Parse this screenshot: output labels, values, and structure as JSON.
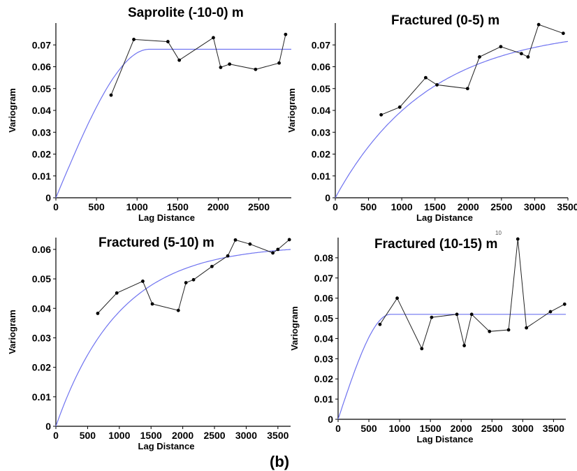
{
  "chart_data": [
    {
      "type": "line",
      "title": "Saprolite (-10-0) m",
      "xlabel": "Lag Distance",
      "ylabel": "Variogram",
      "xlim": [
        0,
        2900
      ],
      "ylim": [
        0,
        0.08
      ],
      "xticks": [
        0,
        500,
        1000,
        1500,
        2000,
        2500
      ],
      "yticks": [
        0,
        0.01,
        0.02,
        0.03,
        0.04,
        0.05,
        0.06,
        0.07
      ],
      "ytick_labels": [
        "0",
        "0.01",
        "0.02",
        "0.03",
        "0.04",
        "0.05",
        "0.06",
        "0.07"
      ],
      "model": {
        "type": "spherical",
        "sill": 0.068,
        "range": 1150
      },
      "series": [
        {
          "values": [
            {
              "x": 680,
              "y": 0.047
            },
            {
              "x": 960,
              "y": 0.0725
            },
            {
              "x": 1380,
              "y": 0.0715
            },
            {
              "x": 1520,
              "y": 0.063
            },
            {
              "x": 1940,
              "y": 0.0733
            },
            {
              "x": 2030,
              "y": 0.0597
            },
            {
              "x": 2140,
              "y": 0.0612
            },
            {
              "x": 2460,
              "y": 0.0588
            },
            {
              "x": 2750,
              "y": 0.0617
            },
            {
              "x": 2830,
              "y": 0.0748
            }
          ]
        }
      ],
      "grid": false
    },
    {
      "type": "line",
      "title": "Fractured (0-5) m",
      "xlabel": "Lag Distance",
      "ylabel": "Variogram",
      "xlim": [
        0,
        3500
      ],
      "ylim": [
        0,
        0.08
      ],
      "xticks": [
        0,
        500,
        1000,
        1500,
        2000,
        2500,
        3000,
        3500
      ],
      "yticks": [
        0,
        0.01,
        0.02,
        0.03,
        0.04,
        0.05,
        0.06,
        0.07
      ],
      "ytick_labels": [
        "0",
        "0.01",
        "0.02",
        "0.03",
        "0.04",
        "0.05",
        "0.06",
        "0.07"
      ],
      "model": {
        "type": "exponential",
        "sill": 0.078,
        "range": 1400
      },
      "series": [
        {
          "values": [
            {
              "x": 690,
              "y": 0.038
            },
            {
              "x": 970,
              "y": 0.0415
            },
            {
              "x": 1360,
              "y": 0.055
            },
            {
              "x": 1530,
              "y": 0.0517
            },
            {
              "x": 1990,
              "y": 0.05
            },
            {
              "x": 2170,
              "y": 0.0645
            },
            {
              "x": 2490,
              "y": 0.0692
            },
            {
              "x": 2800,
              "y": 0.066
            },
            {
              "x": 2900,
              "y": 0.0645
            },
            {
              "x": 3060,
              "y": 0.0793
            },
            {
              "x": 3430,
              "y": 0.0753
            }
          ]
        }
      ],
      "grid": false
    },
    {
      "type": "line",
      "title": "Fractured (5-10) m",
      "xlabel": "Lag Distance",
      "ylabel": "Variogram",
      "xlim": [
        0,
        3700
      ],
      "ylim": [
        0,
        0.064
      ],
      "xticks": [
        0,
        500,
        1000,
        1500,
        2000,
        2500,
        3000,
        3500
      ],
      "yticks": [
        0,
        0.01,
        0.02,
        0.03,
        0.04,
        0.05,
        0.06
      ],
      "ytick_labels": [
        "0",
        "0.01",
        "0.02",
        "0.03",
        "0.04",
        "0.05",
        "0.06"
      ],
      "model": {
        "type": "exponential",
        "sill": 0.0615,
        "range": 1000
      },
      "series": [
        {
          "values": [
            {
              "x": 660,
              "y": 0.0383
            },
            {
              "x": 960,
              "y": 0.0452
            },
            {
              "x": 1370,
              "y": 0.0492
            },
            {
              "x": 1520,
              "y": 0.0415
            },
            {
              "x": 1930,
              "y": 0.0393
            },
            {
              "x": 2050,
              "y": 0.0487
            },
            {
              "x": 2170,
              "y": 0.0497
            },
            {
              "x": 2460,
              "y": 0.0542
            },
            {
              "x": 2710,
              "y": 0.0578
            },
            {
              "x": 2830,
              "y": 0.0632
            },
            {
              "x": 3060,
              "y": 0.0618
            },
            {
              "x": 3420,
              "y": 0.0588
            },
            {
              "x": 3500,
              "y": 0.06
            },
            {
              "x": 3680,
              "y": 0.0633
            }
          ]
        }
      ],
      "grid": false
    },
    {
      "type": "line",
      "title": "Fractured (10-15) m",
      "xlabel": "Lag Distance",
      "ylabel": "Variogram",
      "xlim": [
        0,
        3700
      ],
      "ylim": [
        0,
        0.09
      ],
      "xticks": [
        0,
        500,
        1000,
        1500,
        2000,
        2500,
        3000,
        3500
      ],
      "yticks": [
        0,
        0.01,
        0.02,
        0.03,
        0.04,
        0.05,
        0.06,
        0.07,
        0.08
      ],
      "ytick_labels": [
        "0",
        "0.01",
        "0.02",
        "0.03",
        "0.04",
        "0.05",
        "0.06",
        "0.07",
        "0.08"
      ],
      "model": {
        "type": "spherical",
        "sill": 0.052,
        "range": 850
      },
      "series": [
        {
          "values": [
            {
              "x": 680,
              "y": 0.047
            },
            {
              "x": 960,
              "y": 0.06
            },
            {
              "x": 1360,
              "y": 0.035
            },
            {
              "x": 1520,
              "y": 0.0505
            },
            {
              "x": 1930,
              "y": 0.052
            },
            {
              "x": 2050,
              "y": 0.0365
            },
            {
              "x": 2170,
              "y": 0.052
            },
            {
              "x": 2460,
              "y": 0.0435
            },
            {
              "x": 2770,
              "y": 0.0443
            },
            {
              "x": 2920,
              "y": 0.0893
            },
            {
              "x": 3060,
              "y": 0.0453
            },
            {
              "x": 3450,
              "y": 0.0533
            },
            {
              "x": 3680,
              "y": 0.057
            }
          ]
        }
      ],
      "grid": false
    }
  ],
  "caption": "(b)",
  "stray_marks": [
    "10"
  ]
}
